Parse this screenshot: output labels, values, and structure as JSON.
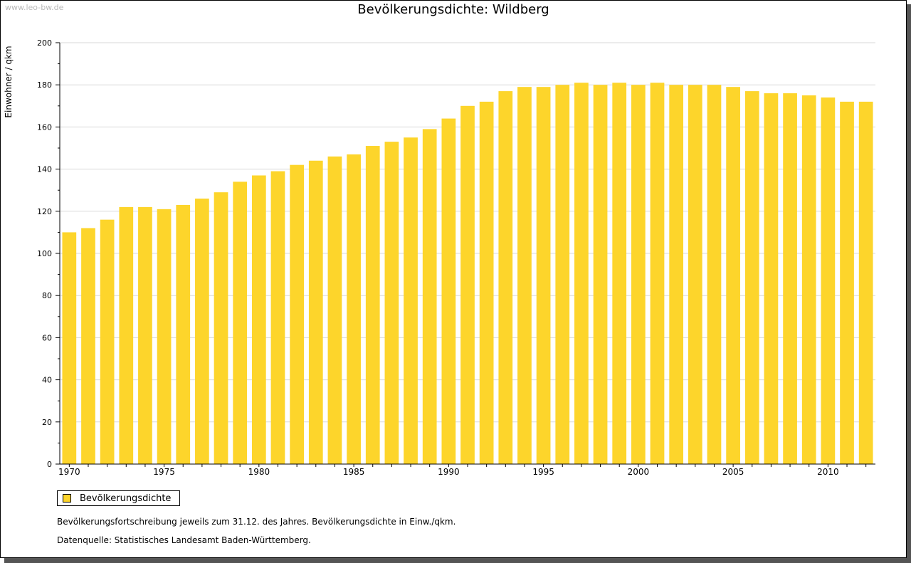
{
  "watermark": "www.leo-bw.de",
  "colors": {
    "bar": "#FDD52B",
    "grid": "#d9d9d9",
    "axis": "#000000"
  },
  "chart_data": {
    "type": "bar",
    "title": "Bevölkerungsdichte: Wildberg",
    "xlabel": "",
    "ylabel": "Einwohner / qkm",
    "ylim": [
      0,
      200
    ],
    "yticks": [
      0,
      20,
      40,
      60,
      80,
      100,
      120,
      140,
      160,
      180,
      200
    ],
    "xtick_labels": [
      "1970",
      "1975",
      "1980",
      "1985",
      "1990",
      "1995",
      "2000",
      "2005",
      "2010"
    ],
    "grid": true,
    "legend_position": "bottom-left",
    "series": [
      {
        "name": "Bevölkerungsdichte",
        "color": "#FDD52B",
        "categories": [
          1970,
          1971,
          1972,
          1973,
          1974,
          1975,
          1976,
          1977,
          1978,
          1979,
          1980,
          1981,
          1982,
          1983,
          1984,
          1985,
          1986,
          1987,
          1988,
          1989,
          1990,
          1991,
          1992,
          1993,
          1994,
          1995,
          1996,
          1997,
          1998,
          1999,
          2000,
          2001,
          2002,
          2003,
          2004,
          2005,
          2006,
          2007,
          2008,
          2009,
          2010,
          2011,
          2012
        ],
        "values": [
          110,
          112,
          116,
          122,
          122,
          121,
          123,
          126,
          129,
          134,
          137,
          139,
          142,
          144,
          146,
          147,
          151,
          153,
          155,
          159,
          164,
          170,
          172,
          177,
          179,
          179,
          180,
          181,
          180,
          181,
          180,
          181,
          180,
          180,
          180,
          179,
          177,
          176,
          176,
          175,
          174,
          172,
          172
        ]
      }
    ]
  },
  "legend": {
    "label": "Bevölkerungsdichte"
  },
  "notes": {
    "line1": "Bevölkerungsfortschreibung jeweils zum 31.12. des Jahres. Bevölkerungsdichte in Einw./qkm.",
    "line2": "Datenquelle: Statistisches Landesamt Baden-Württemberg."
  }
}
